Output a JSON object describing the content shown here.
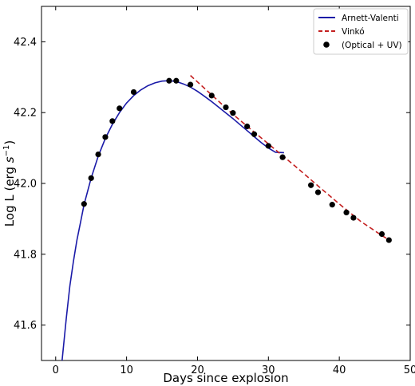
{
  "chart_data": {
    "type": "line",
    "xlabel": "Days since explosion",
    "ylabel_main": "Log L (erg ",
    "ylabel_unit_base": "s",
    "ylabel_unit_exp": "−1",
    "ylabel_close": ")",
    "xlim": [
      -2,
      50
    ],
    "ylim": [
      41.5,
      42.5
    ],
    "xticks": [
      0,
      10,
      20,
      30,
      40,
      50
    ],
    "yticks": [
      41.6,
      41.8,
      42.0,
      42.2,
      42.4
    ],
    "xtick_labels": [
      "0",
      "10",
      "20",
      "30",
      "40",
      "50"
    ],
    "ytick_labels": [
      "41.6",
      "41.8",
      "42.0",
      "42.2",
      "42.4"
    ],
    "legend_position": "top-right",
    "series": [
      {
        "name": "Arnett-Valenti",
        "kind": "line",
        "style": "solid",
        "color": "#1a1aa8",
        "x": [
          0.9,
          1.5,
          2,
          2.5,
          3,
          3.5,
          4,
          5,
          6,
          7,
          8,
          9,
          10,
          11,
          12,
          13,
          14,
          15,
          16,
          17,
          18,
          19,
          20,
          21,
          22,
          23,
          24,
          25,
          26,
          27,
          28,
          29,
          30,
          31,
          32.2
        ],
        "y": [
          41.5,
          41.62,
          41.71,
          41.78,
          41.84,
          41.89,
          41.94,
          42.015,
          42.077,
          42.127,
          42.167,
          42.2,
          42.227,
          42.248,
          42.264,
          42.276,
          42.284,
          42.289,
          42.29,
          42.288,
          42.281,
          42.272,
          42.26,
          42.246,
          42.231,
          42.215,
          42.199,
          42.183,
          42.166,
          42.149,
          42.132,
          42.115,
          42.1,
          42.088,
          42.087
        ]
      },
      {
        "name": "Vinkó",
        "kind": "line",
        "style": "dashed",
        "color": "#c42020",
        "x": [
          19,
          22,
          25,
          28,
          31,
          34,
          37,
          40,
          43,
          46,
          47.2
        ],
        "y": [
          42.305,
          42.25,
          42.195,
          42.145,
          42.095,
          42.045,
          41.993,
          41.942,
          41.893,
          41.853,
          41.838
        ]
      },
      {
        "name": "(Optical + UV)",
        "kind": "scatter",
        "color": "#000000",
        "x": [
          4,
          5,
          6,
          7,
          8,
          9,
          11,
          16,
          17,
          19,
          22,
          24,
          25,
          27,
          28,
          30,
          32,
          36,
          37,
          39,
          41,
          42,
          46,
          47
        ],
        "y": [
          41.942,
          42.015,
          42.082,
          42.131,
          42.176,
          42.212,
          42.258,
          42.29,
          42.29,
          42.279,
          42.248,
          42.215,
          42.199,
          42.161,
          42.139,
          42.106,
          42.074,
          41.995,
          41.975,
          41.94,
          41.918,
          41.903,
          41.857,
          41.84
        ]
      }
    ]
  }
}
